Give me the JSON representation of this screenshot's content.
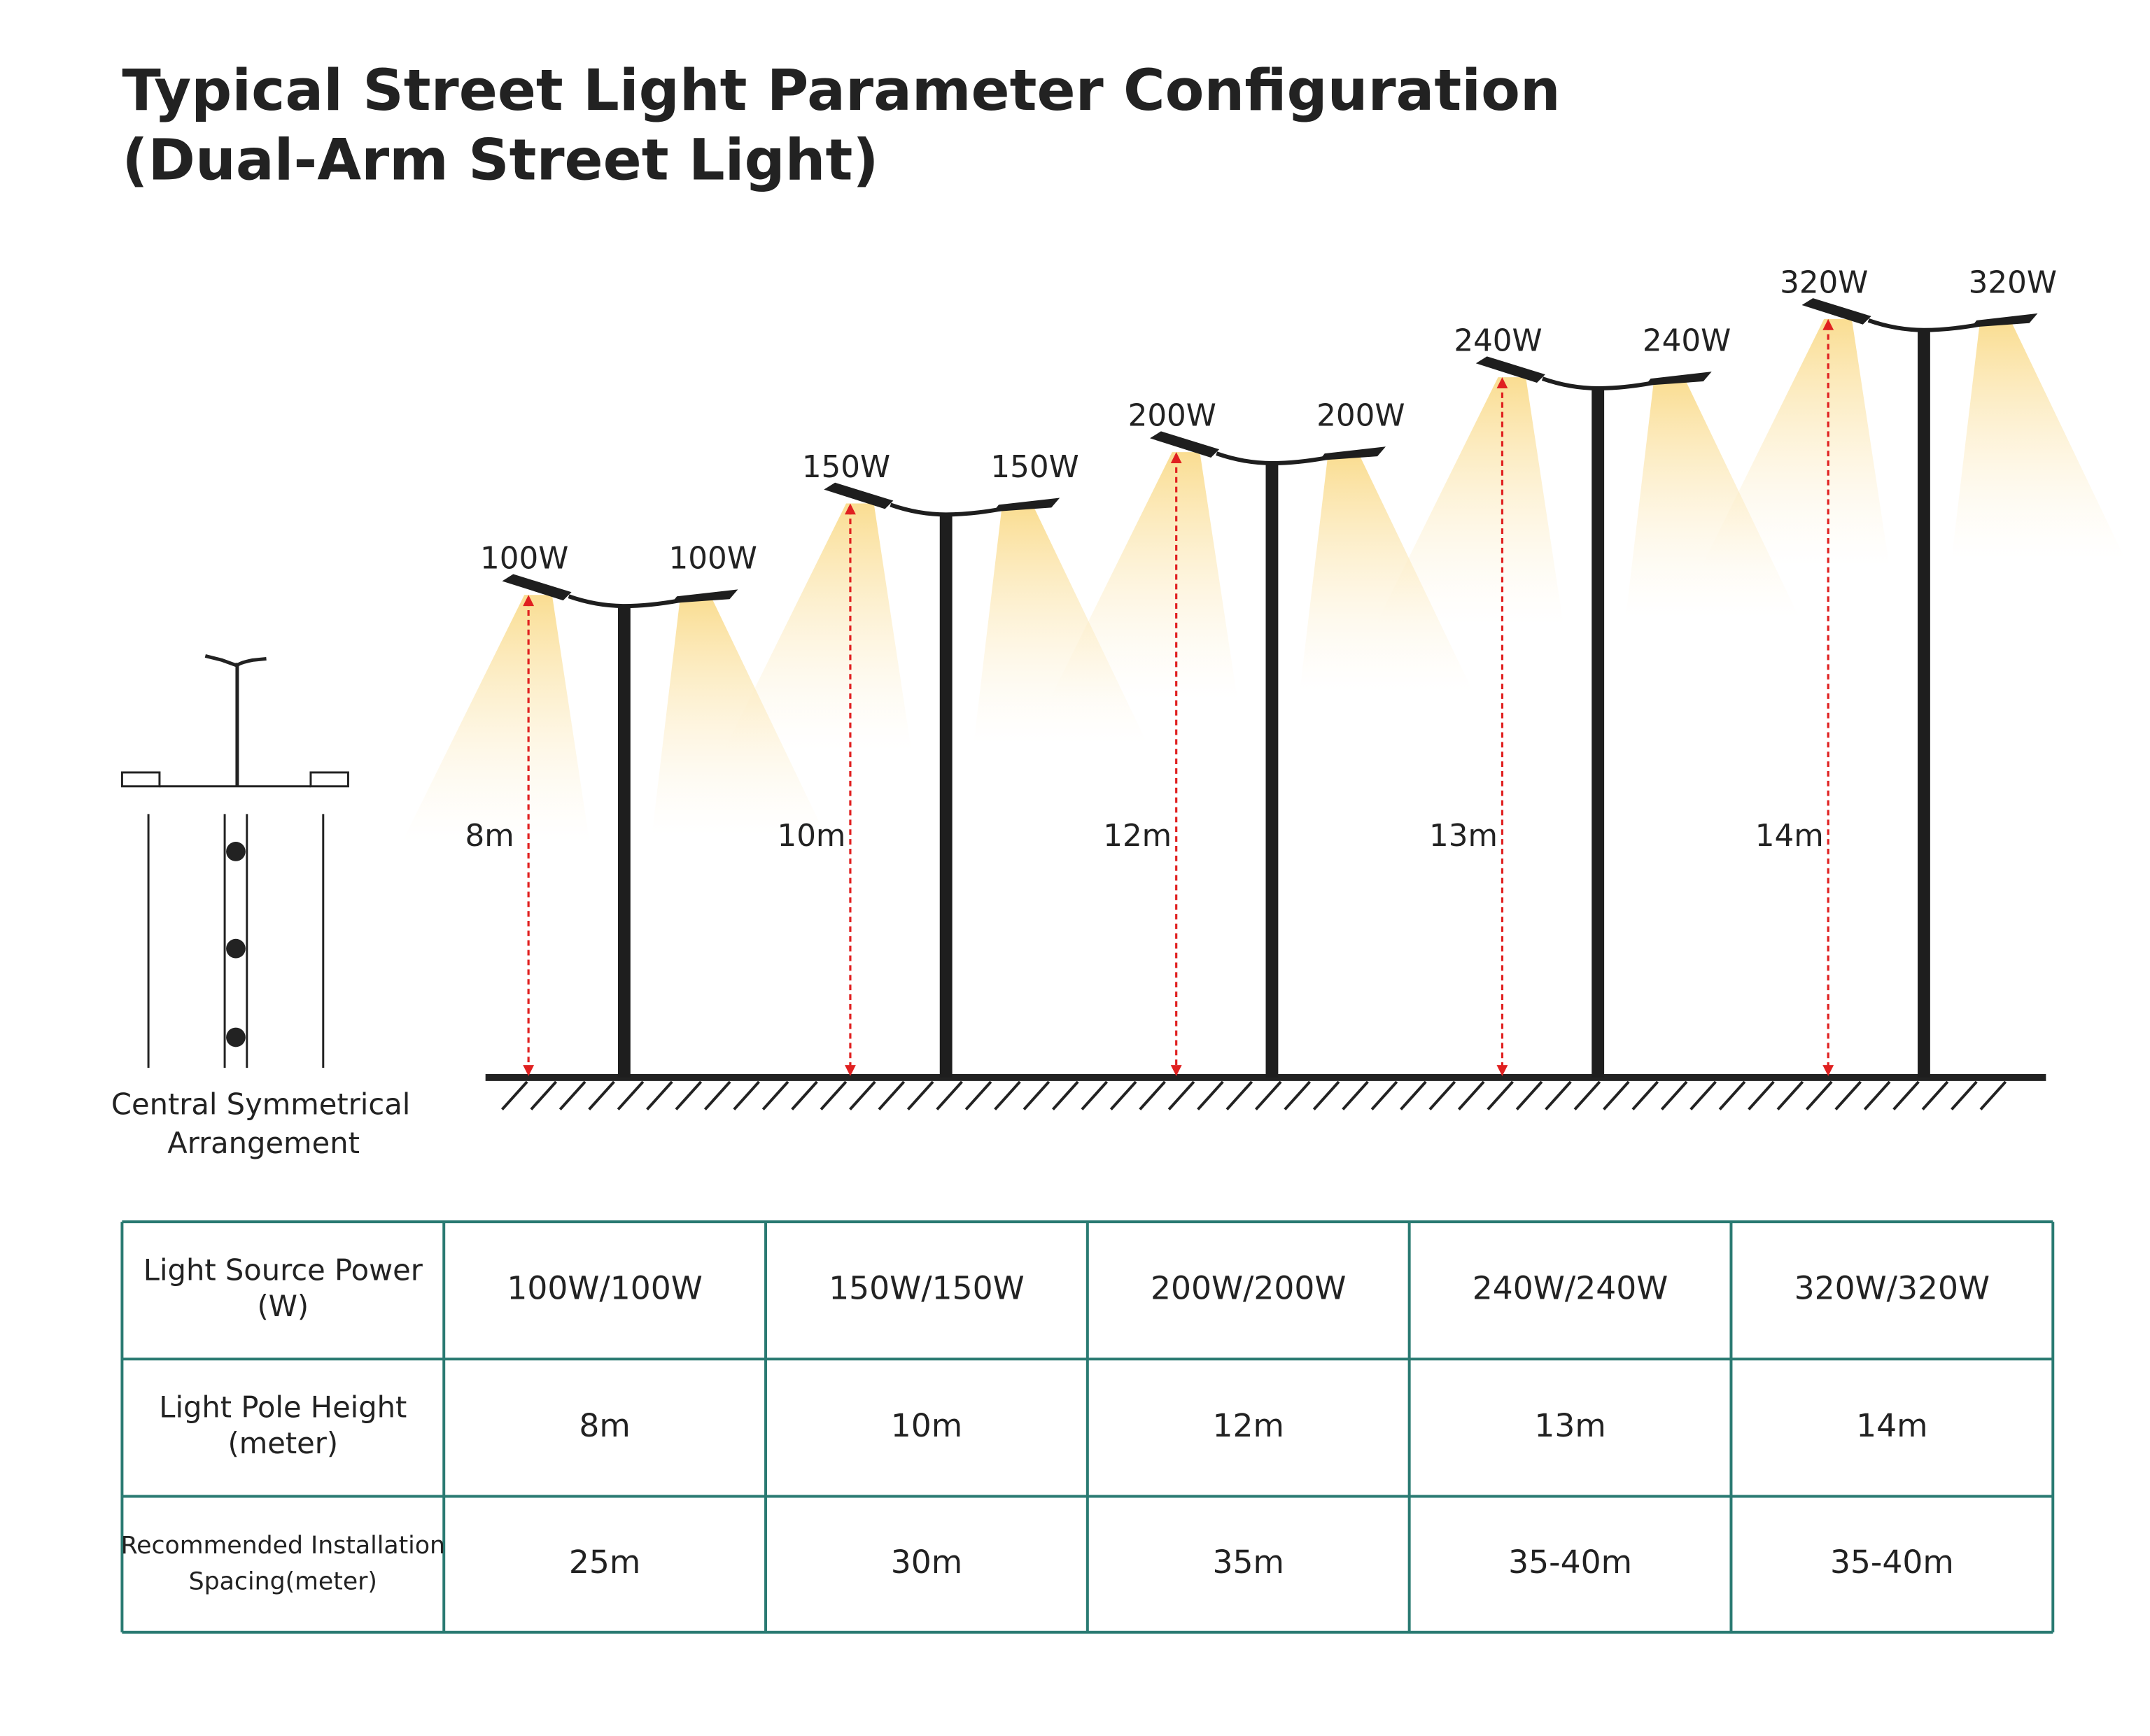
{
  "title": [
    "Typical Street Light Parameter Configuration",
    "(Dual-Arm Street Light)"
  ],
  "arrangement": {
    "label": [
      "Central Symmetrical",
      "Arrangement"
    ]
  },
  "lights": [
    {
      "left_power": "100W",
      "right_power": "100W",
      "height": "8m"
    },
    {
      "left_power": "150W",
      "right_power": "150W",
      "height": "10m"
    },
    {
      "left_power": "200W",
      "right_power": "200W",
      "height": "12m"
    },
    {
      "left_power": "240W",
      "right_power": "240W",
      "height": "13m"
    },
    {
      "left_power": "320W",
      "right_power": "320W",
      "height": "14m"
    }
  ],
  "table": {
    "rows": [
      {
        "label": [
          "Light Source Power",
          "(W)"
        ],
        "cells": [
          "100W/100W",
          "150W/150W",
          "200W/200W",
          "240W/240W",
          "320W/320W"
        ]
      },
      {
        "label": [
          "Light Pole Height",
          "(meter)"
        ],
        "cells": [
          "8m",
          "10m",
          "12m",
          "13m",
          "14m"
        ]
      },
      {
        "label": [
          "Recommended Installation",
          "Spacing(meter)"
        ],
        "cells": [
          "25m",
          "30m",
          "35m",
          "35-40m",
          "35-40m"
        ]
      }
    ]
  }
}
